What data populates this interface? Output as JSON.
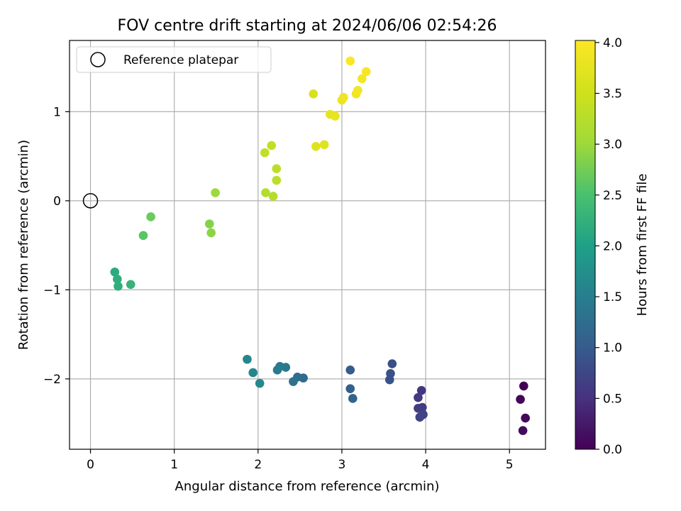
{
  "chart_data": {
    "type": "scatter",
    "title": "FOV centre drift starting at 2024/06/06 02:54:26",
    "xlabel": "Angular distance from reference (arcmin)",
    "ylabel": "Rotation from reference (arcmin)",
    "xlim": [
      -0.25,
      5.43
    ],
    "ylim": [
      -2.79,
      1.8
    ],
    "xticks": [
      0,
      1,
      2,
      3,
      4,
      5
    ],
    "xtick_labels": [
      "0",
      "1",
      "2",
      "3",
      "4",
      "5"
    ],
    "yticks": [
      -2,
      -1,
      0,
      1
    ],
    "ytick_labels": [
      "−2",
      "−1",
      "0",
      "1"
    ],
    "grid": true,
    "legend": {
      "position": "top-left",
      "entries": [
        {
          "label": "Reference platepar",
          "marker": "open-circle"
        }
      ]
    },
    "reference": {
      "x": 0,
      "y": 0
    },
    "colorbar": {
      "label": "Hours from first FF file",
      "range": [
        0.0,
        4.02
      ],
      "ticks": [
        0.0,
        0.5,
        1.0,
        1.5,
        2.0,
        2.5,
        3.0,
        3.5,
        4.0
      ],
      "tick_labels": [
        "0.0",
        "0.5",
        "1.0",
        "1.5",
        "2.0",
        "2.5",
        "3.0",
        "3.5",
        "4.0"
      ],
      "colormap": "viridis"
    },
    "points": [
      {
        "x": 5.17,
        "y": -2.08,
        "c": 0.0
      },
      {
        "x": 5.13,
        "y": -2.23,
        "c": 0.05
      },
      {
        "x": 5.19,
        "y": -2.44,
        "c": 0.08
      },
      {
        "x": 5.16,
        "y": -2.58,
        "c": 0.1
      },
      {
        "x": 3.95,
        "y": -2.13,
        "c": 0.55
      },
      {
        "x": 3.91,
        "y": -2.21,
        "c": 0.6
      },
      {
        "x": 3.96,
        "y": -2.32,
        "c": 0.62
      },
      {
        "x": 3.91,
        "y": -2.33,
        "c": 0.65
      },
      {
        "x": 3.97,
        "y": -2.4,
        "c": 0.7
      },
      {
        "x": 3.93,
        "y": -2.43,
        "c": 0.72
      },
      {
        "x": 3.6,
        "y": -1.83,
        "c": 0.85
      },
      {
        "x": 3.58,
        "y": -1.94,
        "c": 0.88
      },
      {
        "x": 3.57,
        "y": -2.01,
        "c": 0.9
      },
      {
        "x": 3.1,
        "y": -1.9,
        "c": 1.0
      },
      {
        "x": 3.1,
        "y": -2.11,
        "c": 1.05
      },
      {
        "x": 3.13,
        "y": -2.22,
        "c": 1.1
      },
      {
        "x": 2.54,
        "y": -1.99,
        "c": 1.2
      },
      {
        "x": 2.47,
        "y": -1.98,
        "c": 1.25
      },
      {
        "x": 2.42,
        "y": -2.03,
        "c": 1.3
      },
      {
        "x": 2.33,
        "y": -1.87,
        "c": 1.4
      },
      {
        "x": 2.26,
        "y": -1.86,
        "c": 1.42
      },
      {
        "x": 2.23,
        "y": -1.9,
        "c": 1.45
      },
      {
        "x": 1.87,
        "y": -1.78,
        "c": 1.6
      },
      {
        "x": 1.94,
        "y": -1.93,
        "c": 1.62
      },
      {
        "x": 2.02,
        "y": -2.05,
        "c": 1.65
      },
      {
        "x": 0.29,
        "y": -0.8,
        "c": 2.15
      },
      {
        "x": 0.32,
        "y": -0.88,
        "c": 2.2
      },
      {
        "x": 0.33,
        "y": -0.96,
        "c": 2.22
      },
      {
        "x": 0.48,
        "y": -0.94,
        "c": 2.3
      },
      {
        "x": 0.63,
        "y": -0.39,
        "c": 2.6
      },
      {
        "x": 0.72,
        "y": -0.18,
        "c": 2.7
      },
      {
        "x": 1.42,
        "y": -0.26,
        "c": 2.85
      },
      {
        "x": 1.44,
        "y": -0.36,
        "c": 2.9
      },
      {
        "x": 1.49,
        "y": 0.09,
        "c": 3.0
      },
      {
        "x": 2.09,
        "y": 0.09,
        "c": 3.2
      },
      {
        "x": 2.18,
        "y": 0.05,
        "c": 3.25
      },
      {
        "x": 2.22,
        "y": 0.23,
        "c": 3.3
      },
      {
        "x": 2.22,
        "y": 0.36,
        "c": 3.32
      },
      {
        "x": 2.08,
        "y": 0.54,
        "c": 3.35
      },
      {
        "x": 2.16,
        "y": 0.62,
        "c": 3.38
      },
      {
        "x": 2.66,
        "y": 1.2,
        "c": 3.6
      },
      {
        "x": 2.69,
        "y": 0.61,
        "c": 3.68
      },
      {
        "x": 2.79,
        "y": 0.63,
        "c": 3.7
      },
      {
        "x": 2.86,
        "y": 0.97,
        "c": 3.75
      },
      {
        "x": 2.92,
        "y": 0.95,
        "c": 3.78
      },
      {
        "x": 3.0,
        "y": 1.13,
        "c": 3.82
      },
      {
        "x": 3.02,
        "y": 1.16,
        "c": 3.85
      },
      {
        "x": 3.17,
        "y": 1.2,
        "c": 3.88
      },
      {
        "x": 3.19,
        "y": 1.24,
        "c": 3.9
      },
      {
        "x": 3.24,
        "y": 1.37,
        "c": 3.93
      },
      {
        "x": 3.29,
        "y": 1.45,
        "c": 3.96
      },
      {
        "x": 3.1,
        "y": 1.57,
        "c": 4.0
      }
    ]
  }
}
